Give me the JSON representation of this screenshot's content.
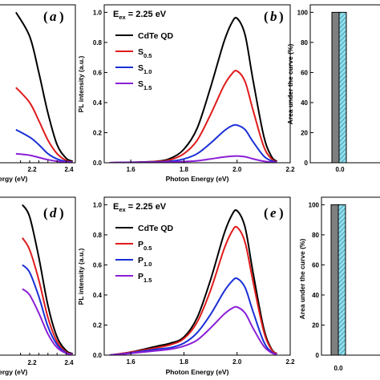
{
  "chart_data": [
    {
      "id": "a",
      "type": "line",
      "panel_label": "a",
      "x_tick_labels": [
        "2.2",
        "2.4"
      ],
      "xlabel_fragment": "ergy (eV)",
      "xlim": [
        1.5,
        2.5
      ],
      "ylim": [
        0,
        1.05
      ],
      "colors": [
        "#000000",
        "#e01b1b",
        "#1a2fd6",
        "#8a1fd6"
      ],
      "series": [
        {
          "x": [
            1.85,
            2.0,
            2.1,
            2.2,
            2.3,
            2.4,
            2.47
          ],
          "y": [
            1.0,
            0.84,
            0.6,
            0.33,
            0.12,
            0.03,
            0.01
          ]
        },
        {
          "x": [
            1.85,
            2.0,
            2.1,
            2.2,
            2.3,
            2.4,
            2.47
          ],
          "y": [
            0.5,
            0.4,
            0.28,
            0.15,
            0.06,
            0.015,
            0.005
          ]
        },
        {
          "x": [
            1.85,
            2.0,
            2.1,
            2.2,
            2.3,
            2.4,
            2.47
          ],
          "y": [
            0.22,
            0.17,
            0.12,
            0.06,
            0.025,
            0.008,
            0.003
          ]
        },
        {
          "x": [
            1.85,
            2.0,
            2.1,
            2.2,
            2.3,
            2.4,
            2.47
          ],
          "y": [
            0.06,
            0.05,
            0.035,
            0.02,
            0.01,
            0.004,
            0.002
          ]
        }
      ]
    },
    {
      "id": "b",
      "type": "line",
      "panel_label": "b",
      "annotation_main": "E",
      "annotation_sub": "ex",
      "annotation_rest": " = 2.25 eV",
      "xlabel": "Photon Energy (eV)",
      "ylabel": "PL intensity (a.u.)",
      "xlim": [
        1.5,
        2.2
      ],
      "ylim": [
        0,
        1.05
      ],
      "x_ticks": [
        1.6,
        1.8,
        2.0,
        2.2
      ],
      "x_tick_labels": [
        "1.6",
        "1.8",
        "2.0",
        "2.2"
      ],
      "y_ticks": [
        0,
        0.2,
        0.4,
        0.6,
        0.8,
        1.0
      ],
      "y_tick_labels": [
        "0.0",
        "0.2",
        "0.4",
        "0.6",
        "0.8",
        "1.0"
      ],
      "legend": [
        {
          "main": "CdTe QD",
          "sub": "",
          "color": "#000000"
        },
        {
          "main": "S",
          "sub": "0.5",
          "color": "#e01b1b"
        },
        {
          "main": "S",
          "sub": "1.0",
          "color": "#1a2fd6"
        },
        {
          "main": "S",
          "sub": "1.5",
          "color": "#8a1fd6"
        }
      ],
      "colors": [
        "#000000",
        "#e01b1b",
        "#1a2fd6",
        "#8a1fd6"
      ],
      "series": [
        {
          "x": [
            1.52,
            1.6,
            1.7,
            1.75,
            1.8,
            1.85,
            1.9,
            1.95,
            1.98,
            2.0,
            2.03,
            2.06,
            2.1,
            2.13,
            2.15
          ],
          "y": [
            0.0,
            0.003,
            0.01,
            0.03,
            0.09,
            0.23,
            0.5,
            0.8,
            0.93,
            0.96,
            0.85,
            0.55,
            0.18,
            0.04,
            0.01
          ]
        },
        {
          "x": [
            1.52,
            1.6,
            1.7,
            1.75,
            1.8,
            1.85,
            1.9,
            1.95,
            1.98,
            2.0,
            2.03,
            2.06,
            2.1,
            2.13,
            2.15
          ],
          "y": [
            0.0,
            0.002,
            0.008,
            0.02,
            0.06,
            0.15,
            0.32,
            0.51,
            0.59,
            0.61,
            0.54,
            0.35,
            0.11,
            0.025,
            0.006
          ]
        },
        {
          "x": [
            1.52,
            1.6,
            1.7,
            1.75,
            1.8,
            1.85,
            1.9,
            1.95,
            1.98,
            2.0,
            2.03,
            2.06,
            2.1,
            2.13,
            2.15
          ],
          "y": [
            0.0,
            0.002,
            0.005,
            0.01,
            0.025,
            0.06,
            0.13,
            0.21,
            0.245,
            0.25,
            0.22,
            0.14,
            0.045,
            0.012,
            0.004
          ]
        },
        {
          "x": [
            1.52,
            1.6,
            1.7,
            1.75,
            1.8,
            1.85,
            1.9,
            1.95,
            1.98,
            2.0,
            2.03,
            2.06,
            2.1,
            2.13,
            2.15
          ],
          "y": [
            0.0,
            0.002,
            0.004,
            0.005,
            0.008,
            0.013,
            0.025,
            0.038,
            0.043,
            0.045,
            0.04,
            0.026,
            0.01,
            0.004,
            0.002
          ]
        }
      ]
    },
    {
      "id": "c",
      "type": "bar",
      "ylabel": "Area under the curve (%)",
      "ylim": [
        0,
        105
      ],
      "y_ticks": [
        0,
        20,
        40,
        60,
        80,
        100
      ],
      "y_tick_labels": [
        "0",
        "20",
        "40",
        "60",
        "80",
        "100"
      ],
      "x_tick_labels": [
        "0.0"
      ],
      "values": [
        100,
        100
      ],
      "bar_fills": [
        "#7f7f7f",
        "#8fdfee"
      ],
      "bar_hatch": [
        false,
        true
      ]
    },
    {
      "id": "d",
      "type": "line",
      "panel_label": "d",
      "x_tick_labels": [
        "2.2",
        "2.4"
      ],
      "xlabel_fragment": "ergy (eV)",
      "xlim": [
        1.5,
        2.5
      ],
      "ylim": [
        0,
        1.05
      ],
      "colors": [
        "#000000",
        "#e01b1b",
        "#1a2fd6",
        "#8a1fd6"
      ],
      "series": [
        {
          "x": [
            1.92,
            2.0,
            2.1,
            2.2,
            2.3,
            2.4,
            2.47
          ],
          "y": [
            1.0,
            0.92,
            0.65,
            0.33,
            0.12,
            0.03,
            0.01
          ]
        },
        {
          "x": [
            1.92,
            2.0,
            2.1,
            2.2,
            2.3,
            2.4,
            2.47
          ],
          "y": [
            0.78,
            0.7,
            0.5,
            0.25,
            0.09,
            0.02,
            0.007
          ]
        },
        {
          "x": [
            1.92,
            2.0,
            2.1,
            2.2,
            2.3,
            2.4,
            2.47
          ],
          "y": [
            0.6,
            0.55,
            0.39,
            0.19,
            0.07,
            0.015,
            0.005
          ]
        },
        {
          "x": [
            1.92,
            2.0,
            2.1,
            2.2,
            2.3,
            2.4,
            2.47
          ],
          "y": [
            0.44,
            0.4,
            0.28,
            0.14,
            0.05,
            0.012,
            0.004
          ]
        }
      ]
    },
    {
      "id": "e",
      "type": "line",
      "panel_label": "e",
      "annotation_main": "E",
      "annotation_sub": "ex",
      "annotation_rest": " = 2.25 eV",
      "xlabel": "Photon Energy (eV)",
      "ylabel": "PL intensity (a.u.)",
      "xlim": [
        1.5,
        2.2
      ],
      "ylim": [
        0,
        1.05
      ],
      "x_ticks": [
        1.6,
        1.8,
        2.0,
        2.2
      ],
      "x_tick_labels": [
        "1.6",
        "1.8",
        "2.0",
        "2.2"
      ],
      "y_ticks": [
        0,
        0.2,
        0.4,
        0.6,
        0.8,
        1.0
      ],
      "y_tick_labels": [
        "0.0",
        "0.2",
        "0.4",
        "0.6",
        "0.8",
        "1.0"
      ],
      "legend": [
        {
          "main": "CdTe QD",
          "sub": "",
          "color": "#000000"
        },
        {
          "main": "P",
          "sub": "0.5",
          "color": "#e01b1b"
        },
        {
          "main": "P",
          "sub": "1.0",
          "color": "#1a2fd6"
        },
        {
          "main": "P",
          "sub": "1.5",
          "color": "#8a1fd6"
        }
      ],
      "colors": [
        "#000000",
        "#e01b1b",
        "#1a2fd6",
        "#8a1fd6"
      ],
      "series": [
        {
          "x": [
            1.52,
            1.6,
            1.7,
            1.75,
            1.8,
            1.85,
            1.9,
            1.95,
            1.98,
            2.0,
            2.03,
            2.06,
            2.1,
            2.13,
            2.15
          ],
          "y": [
            0.0,
            0.02,
            0.06,
            0.08,
            0.12,
            0.25,
            0.5,
            0.8,
            0.93,
            0.96,
            0.85,
            0.55,
            0.18,
            0.04,
            0.01
          ]
        },
        {
          "x": [
            1.52,
            1.6,
            1.7,
            1.75,
            1.8,
            1.85,
            1.9,
            1.95,
            1.98,
            2.0,
            2.03,
            2.06,
            2.1,
            2.13,
            2.15
          ],
          "y": [
            0.0,
            0.02,
            0.05,
            0.07,
            0.11,
            0.22,
            0.43,
            0.7,
            0.82,
            0.85,
            0.75,
            0.49,
            0.16,
            0.035,
            0.01
          ]
        },
        {
          "x": [
            1.52,
            1.6,
            1.7,
            1.75,
            1.8,
            1.85,
            1.9,
            1.95,
            1.98,
            2.0,
            2.03,
            2.06,
            2.1,
            2.13,
            2.15
          ],
          "y": [
            0.0,
            0.015,
            0.04,
            0.05,
            0.08,
            0.15,
            0.27,
            0.42,
            0.49,
            0.51,
            0.45,
            0.29,
            0.09,
            0.02,
            0.006
          ]
        },
        {
          "x": [
            1.52,
            1.6,
            1.7,
            1.75,
            1.8,
            1.85,
            1.9,
            1.95,
            1.98,
            2.0,
            2.03,
            2.06,
            2.1,
            2.13,
            2.15
          ],
          "y": [
            0.0,
            0.012,
            0.03,
            0.04,
            0.06,
            0.1,
            0.18,
            0.27,
            0.31,
            0.32,
            0.28,
            0.18,
            0.06,
            0.015,
            0.005
          ]
        }
      ]
    },
    {
      "id": "f",
      "type": "bar",
      "ylabel": "Area under the curve (%)",
      "ylim": [
        0,
        105
      ],
      "y_ticks": [
        0,
        20,
        40,
        60,
        80,
        100
      ],
      "y_tick_labels": [
        "0",
        "20",
        "40",
        "60",
        "80",
        "100"
      ],
      "x_tick_labels": [
        "0.0"
      ],
      "values": [
        100,
        100
      ],
      "bar_fills": [
        "#7f7f7f",
        "#8fdfee"
      ],
      "bar_hatch": [
        false,
        true
      ]
    }
  ]
}
